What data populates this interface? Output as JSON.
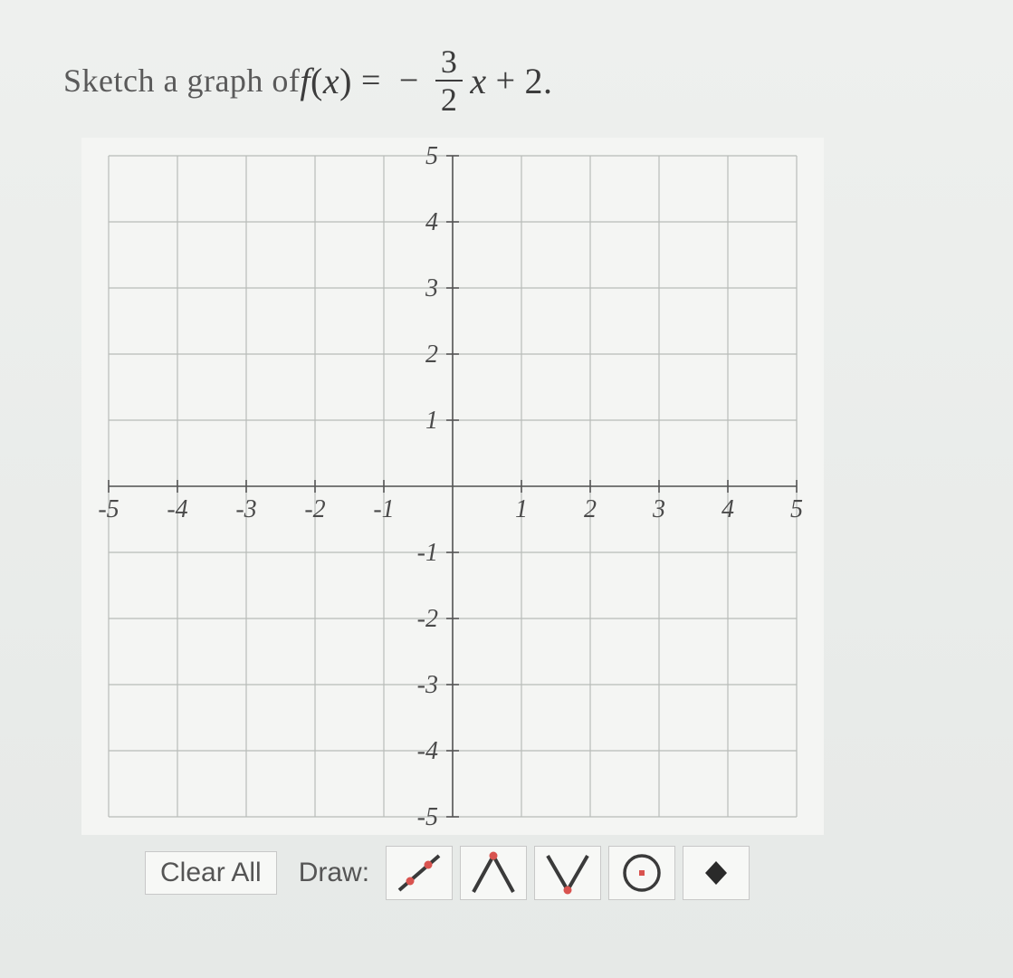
{
  "prompt": {
    "lead_text": "Sketch a graph of ",
    "fn": "f",
    "paren_open": "(",
    "var": "x",
    "paren_close": ")",
    "equals": "=",
    "minus": "−",
    "frac_num": "3",
    "frac_den": "2",
    "var2": "x",
    "plus": "+",
    "const": "2",
    "period": "."
  },
  "chart": {
    "type": "cartesian-grid",
    "xlim": [
      -5,
      5
    ],
    "ylim": [
      -5,
      5
    ],
    "xtick_step": 1,
    "ytick_step": 1,
    "x_labels": [
      "-5",
      "-4",
      "-3",
      "-2",
      "-1",
      "1",
      "2",
      "3",
      "4",
      "5"
    ],
    "y_labels": [
      "5",
      "4",
      "3",
      "2",
      "1",
      "-1",
      "-2",
      "-3",
      "-4",
      "-5"
    ],
    "grid_color": "#b8bcb9",
    "minor_grid_color": "#d8dad7",
    "axis_color": "#555555",
    "tick_color": "#555555",
    "label_color": "#4a4a4a",
    "background_color": "#f4f5f3",
    "label_fontsize": 28,
    "label_font_style": "italic",
    "grid_line_width": 1.2,
    "axis_line_width": 1.6
  },
  "toolbar": {
    "clear_label": "Clear All",
    "draw_label": "Draw:"
  },
  "tools": {
    "line_stroke": "#3a3a3a",
    "accent_color": "#d9534f",
    "dot_fill": "#2a2a2a"
  }
}
